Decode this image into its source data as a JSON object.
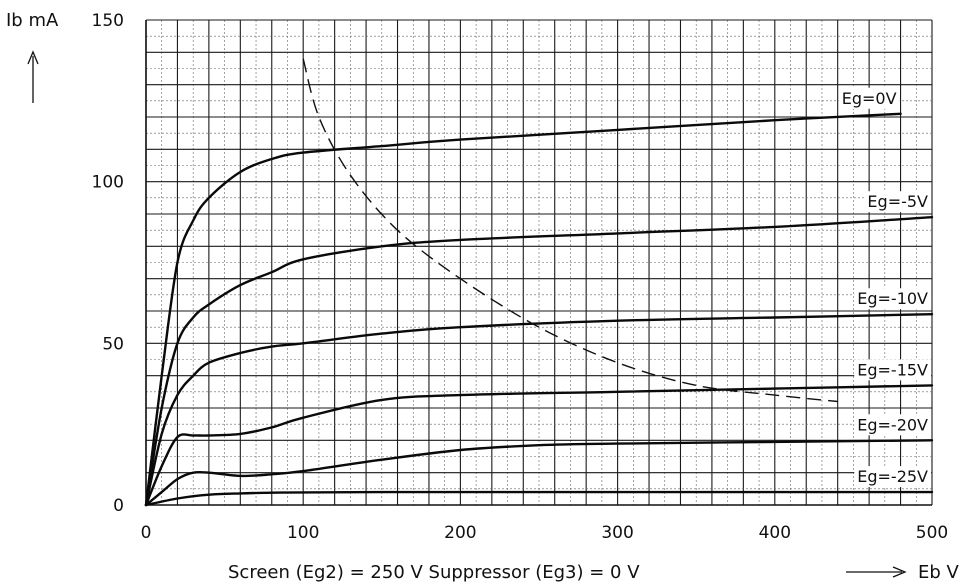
{
  "chart_data": {
    "type": "line",
    "xlabel": "Eb V",
    "ylabel": "Ib mA",
    "subtitle": "Screen (Eg2) = 250 V Suppressor (Eg3) = 0 V",
    "xlim": [
      0,
      500
    ],
    "ylim": [
      0,
      150
    ],
    "x_ticks": [
      "0",
      "100",
      "200",
      "300",
      "400",
      "500"
    ],
    "y_ticks": [
      "0",
      "50",
      "100",
      "150"
    ],
    "grid": true,
    "series": [
      {
        "name": "Eg=0V",
        "x": [
          0,
          10,
          20,
          30,
          40,
          60,
          80,
          100,
          150,
          200,
          300,
          400,
          480
        ],
        "y": [
          0,
          40,
          75,
          88,
          95,
          103,
          107,
          109,
          111,
          113,
          116,
          119,
          121
        ]
      },
      {
        "name": "Eg=-5V",
        "x": [
          0,
          10,
          20,
          30,
          40,
          60,
          80,
          100,
          150,
          200,
          300,
          400,
          500
        ],
        "y": [
          0,
          30,
          50,
          58,
          62,
          68,
          72,
          76,
          80,
          82,
          84,
          86,
          89
        ]
      },
      {
        "name": "Eg=-10V",
        "x": [
          0,
          10,
          20,
          30,
          40,
          60,
          80,
          100,
          150,
          200,
          300,
          400,
          500
        ],
        "y": [
          0,
          22,
          34,
          40,
          44,
          47,
          49,
          50,
          53,
          55,
          57,
          58,
          59
        ]
      },
      {
        "name": "Eg=-15V",
        "x": [
          0,
          10,
          20,
          30,
          40,
          60,
          80,
          100,
          150,
          200,
          300,
          400,
          500
        ],
        "y": [
          0,
          12,
          21,
          21.5,
          21.5,
          22,
          24,
          27,
          32.5,
          34,
          35,
          36,
          37
        ]
      },
      {
        "name": "Eg=-20V",
        "x": [
          0,
          10,
          20,
          30,
          40,
          60,
          80,
          100,
          150,
          200,
          250,
          300,
          400,
          500
        ],
        "y": [
          0,
          4,
          8,
          10,
          10,
          9,
          9.5,
          10.5,
          14,
          17,
          18.5,
          19,
          19.5,
          20
        ]
      },
      {
        "name": "Eg=-25V",
        "x": [
          0,
          20,
          40,
          60,
          80,
          100,
          150,
          200,
          300,
          400,
          500
        ],
        "y": [
          0,
          2,
          3.2,
          3.6,
          3.8,
          3.9,
          4,
          4,
          4,
          4,
          4
        ]
      }
    ],
    "load_line": {
      "x": [
        100,
        110,
        130,
        160,
        200,
        250,
        300,
        350,
        400,
        440
      ],
      "y": [
        138,
        120,
        102,
        85,
        70,
        55,
        44,
        37,
        34,
        32
      ]
    }
  }
}
